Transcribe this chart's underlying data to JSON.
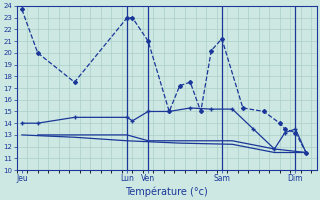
{
  "title": "Température (°c)",
  "bg_color": "#cde8e2",
  "line_color": "#1a3799",
  "grid_color": "#aacfc8",
  "ylim": [
    10,
    24
  ],
  "yticks": [
    10,
    11,
    12,
    13,
    14,
    15,
    16,
    17,
    18,
    19,
    20,
    21,
    22,
    23,
    24
  ],
  "xlim": [
    -0.5,
    28
  ],
  "day_tick_pos": [
    0,
    10,
    12,
    19,
    26
  ],
  "day_labels": [
    "Jeu",
    "Lun",
    "Ven",
    "Sam",
    "Dim"
  ],
  "vline_pos": [
    10,
    12,
    19,
    26
  ],
  "line1_x": [
    0,
    1.5,
    5,
    10,
    10.5,
    12,
    14,
    15,
    16,
    17,
    18,
    19,
    21,
    23,
    24.5,
    25,
    26,
    27
  ],
  "line1_y": [
    23.7,
    20,
    17.5,
    23,
    23,
    21,
    15,
    17.2,
    17.5,
    15.0,
    20.2,
    21.2,
    15.3,
    15.0,
    14.0,
    13.5,
    13.2,
    11.5
  ],
  "line2_x": [
    0,
    1.5,
    5,
    10,
    10.5,
    12,
    14,
    16,
    18,
    20,
    22,
    24,
    25,
    26,
    27
  ],
  "line2_y": [
    14,
    14,
    14.5,
    14.5,
    14.2,
    15.0,
    15.0,
    15.3,
    15.2,
    15.2,
    13.5,
    11.8,
    13.2,
    13.5,
    11.5
  ],
  "line3_x": [
    1.5,
    5,
    10,
    12,
    16,
    20,
    24,
    27
  ],
  "line3_y": [
    13,
    13,
    13,
    12.5,
    12.5,
    12.5,
    11.8,
    11.5
  ],
  "line4_x": [
    0,
    5,
    10,
    15,
    20,
    24,
    27
  ],
  "line4_y": [
    13,
    12.8,
    12.5,
    12.3,
    12.2,
    11.5,
    11.5
  ]
}
